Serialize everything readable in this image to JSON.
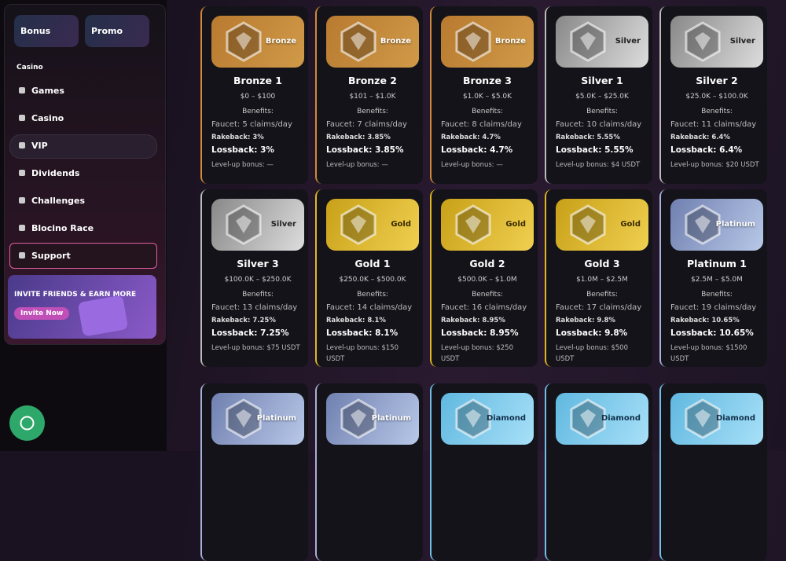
{
  "sidebar": {
    "buttons": [
      "Bonus",
      "Promo"
    ],
    "section": "Casino",
    "nav": [
      "Games",
      "Casino",
      "VIP",
      "Dividends",
      "Challenges",
      "Blocino Race",
      "Support"
    ],
    "invite": {
      "title": "INVITE FRIENDS & EARN MORE",
      "button": "Invite Now"
    }
  },
  "cards": [
    {
      "badge": "Bronze",
      "name": "Bronze 1",
      "range": "$0 – $100",
      "benefits": "Benefits:",
      "faucet": "Faucet: 5 claims/day",
      "rakeback": "Rakeback: 3%",
      "lossback": "Lossback: 3%",
      "levelup": "Level-up bonus: —"
    },
    {
      "badge": "Bronze",
      "name": "Bronze 2",
      "range": "$101 – $1.0K",
      "benefits": "Benefits:",
      "faucet": "Faucet: 7 claims/day",
      "rakeback": "Rakeback: 3.85%",
      "lossback": "Lossback: 3.85%",
      "levelup": "Level-up bonus: —"
    },
    {
      "badge": "Bronze",
      "name": "Bronze 3",
      "range": "$1.0K – $5.0K",
      "benefits": "Benefits:",
      "faucet": "Faucet: 8 claims/day",
      "rakeback": "Rakeback: 4.7%",
      "lossback": "Lossback: 4.7%",
      "levelup": "Level-up bonus: —"
    },
    {
      "badge": "Silver",
      "name": "Silver 1",
      "range": "$5.0K – $25.0K",
      "benefits": "Benefits:",
      "faucet": "Faucet: 10 claims/day",
      "rakeback": "Rakeback: 5.55%",
      "lossback": "Lossback: 5.55%",
      "levelup": "Level-up bonus: $4 USDT"
    },
    {
      "badge": "Silver",
      "name": "Silver 2",
      "range": "$25.0K – $100.0K",
      "benefits": "Benefits:",
      "faucet": "Faucet: 11 claims/day",
      "rakeback": "Rakeback: 6.4%",
      "lossback": "Lossback: 6.4%",
      "levelup": "Level-up bonus: $20 USDT"
    },
    {
      "badge": "Silver",
      "name": "Silver 3",
      "range": "$100.0K – $250.0K",
      "benefits": "Benefits:",
      "faucet": "Faucet: 13 claims/day",
      "rakeback": "Rakeback: 7.25%",
      "lossback": "Lossback: 7.25%",
      "levelup": "Level-up bonus: $75 USDT"
    },
    {
      "badge": "Gold",
      "name": "Gold 1",
      "range": "$250.0K – $500.0K",
      "benefits": "Benefits:",
      "faucet": "Faucet: 14 claims/day",
      "rakeback": "Rakeback: 8.1%",
      "lossback": "Lossback: 8.1%",
      "levelup": "Level-up bonus: $150 USDT"
    },
    {
      "badge": "Gold",
      "name": "Gold 2",
      "range": "$500.0K – $1.0M",
      "benefits": "Benefits:",
      "faucet": "Faucet: 16 claims/day",
      "rakeback": "Rakeback: 8.95%",
      "lossback": "Lossback: 8.95%",
      "levelup": "Level-up bonus: $250 USDT"
    },
    {
      "badge": "Gold",
      "name": "Gold 3",
      "range": "$1.0M – $2.5M",
      "benefits": "Benefits:",
      "faucet": "Faucet: 17 claims/day",
      "rakeback": "Rakeback: 9.8%",
      "lossback": "Lossback: 9.8%",
      "levelup": "Level-up bonus: $500 USDT"
    },
    {
      "badge": "Platinum",
      "name": "Platinum 1",
      "range": "$2.5M – $5.0M",
      "benefits": "Benefits:",
      "faucet": "Faucet: 19 claims/day",
      "rakeback": "Rakeback: 10.65%",
      "lossback": "Lossback: 10.65%",
      "levelup": "Level-up bonus: $1500 USDT"
    },
    {
      "badge": "Platinum"
    },
    {
      "badge": "Platinum"
    },
    {
      "badge": "Diamond"
    },
    {
      "badge": "Diamond"
    },
    {
      "badge": "Diamond"
    }
  ]
}
